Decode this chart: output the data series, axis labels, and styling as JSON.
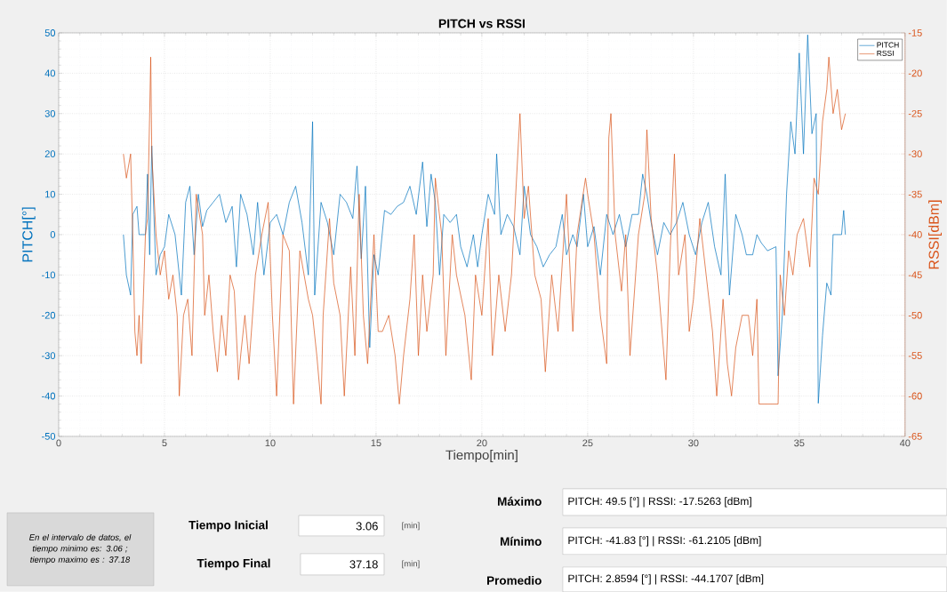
{
  "chart_data": {
    "type": "line",
    "title": "PITCH vs RSSI",
    "xlabel": "Tiempo[min]",
    "ylabel": "PITCH[°]",
    "y2label": "RSSI[dBm]",
    "xlim": [
      0,
      40
    ],
    "xticks": [
      0,
      5,
      10,
      15,
      20,
      25,
      30,
      35,
      40
    ],
    "ylim": [
      -50,
      50
    ],
    "yticks": [
      -50,
      -40,
      -30,
      -20,
      -10,
      0,
      10,
      20,
      30,
      40,
      50
    ],
    "y2lim": [
      -65,
      -15
    ],
    "y2ticks": [
      -65,
      -60,
      -55,
      -50,
      -45,
      -40,
      -35,
      -30,
      -25,
      -20,
      -15
    ],
    "grid": true,
    "legend": "top right",
    "series": [
      {
        "name": "PITCH",
        "color": "#0072bd",
        "x": [
          3.06,
          3.2,
          3.4,
          3.5,
          3.7,
          3.8,
          4.1,
          4.2,
          4.3,
          4.4,
          4.5,
          4.6,
          4.8,
          5.0,
          5.2,
          5.5,
          5.8,
          6.0,
          6.2,
          6.4,
          6.6,
          6.8,
          7.0,
          7.3,
          7.6,
          7.9,
          8.2,
          8.4,
          8.6,
          8.9,
          9.2,
          9.4,
          9.7,
          10.0,
          10.3,
          10.6,
          10.9,
          11.2,
          11.5,
          11.8,
          12.0,
          12.1,
          12.4,
          12.7,
          13.0,
          13.3,
          13.6,
          13.9,
          14.1,
          14.3,
          14.5,
          14.7,
          14.9,
          15.1,
          15.4,
          15.7,
          16.0,
          16.3,
          16.6,
          16.9,
          17.2,
          17.4,
          17.6,
          17.8,
          18.0,
          18.2,
          18.5,
          18.8,
          19.0,
          19.3,
          19.6,
          19.8,
          20.0,
          20.3,
          20.6,
          20.7,
          20.9,
          21.2,
          21.5,
          21.8,
          22.0,
          22.3,
          22.6,
          22.9,
          23.2,
          23.5,
          23.8,
          24.0,
          24.3,
          24.5,
          24.8,
          25.0,
          25.3,
          25.6,
          25.9,
          26.2,
          26.5,
          26.8,
          27.1,
          27.4,
          27.6,
          27.8,
          28.0,
          28.3,
          28.6,
          28.9,
          29.2,
          29.5,
          29.8,
          30.1,
          30.4,
          30.7,
          31.0,
          31.3,
          31.5,
          31.7,
          32.0,
          32.3,
          32.5,
          32.8,
          33.0,
          33.2,
          33.5,
          33.9,
          34.0,
          34.2,
          34.4,
          34.6,
          34.8,
          35.0,
          35.2,
          35.4,
          35.6,
          35.8,
          35.9,
          36.1,
          36.3,
          36.5,
          36.6,
          37.0,
          37.1,
          37.18
        ],
        "values": [
          0,
          -10,
          -15,
          5,
          7,
          0,
          0,
          15,
          -5,
          22,
          5,
          -10,
          -5,
          -3,
          5,
          0,
          -15,
          8,
          12,
          -5,
          10,
          2,
          6,
          8,
          10,
          3,
          7,
          -8,
          10,
          5,
          -5,
          8,
          -10,
          3,
          5,
          0,
          8,
          12,
          3,
          -10,
          28,
          -15,
          8,
          3,
          -5,
          10,
          8,
          4,
          17,
          -6,
          12,
          -28,
          -5,
          -10,
          6,
          5,
          7,
          8,
          12,
          5,
          18,
          2,
          15,
          8,
          -10,
          5,
          3,
          5,
          -3,
          -8,
          0,
          -8,
          0,
          10,
          5,
          20,
          0,
          5,
          2,
          -5,
          12,
          0,
          -3,
          -8,
          -5,
          -3,
          5,
          -5,
          0,
          -3,
          10,
          -3,
          2,
          -10,
          5,
          0,
          5,
          -3,
          5,
          5,
          15,
          10,
          3,
          -5,
          3,
          0,
          3,
          8,
          0,
          -5,
          3,
          8,
          -3,
          -10,
          15,
          -15,
          5,
          0,
          -5,
          -5,
          0,
          -2,
          -4,
          -3,
          -35,
          -20,
          10,
          28,
          20,
          45,
          20,
          49.5,
          25,
          30,
          -41.8,
          -25,
          -12,
          -15,
          0,
          0,
          6,
          0
        ]
      },
      {
        "name": "RSSI",
        "color": "#d95319",
        "axis": "y2",
        "x": [
          3.06,
          3.2,
          3.4,
          3.5,
          3.6,
          3.7,
          3.8,
          3.9,
          4.1,
          4.2,
          4.3,
          4.35,
          4.4,
          4.6,
          4.8,
          5.0,
          5.2,
          5.4,
          5.6,
          5.7,
          5.9,
          6.1,
          6.3,
          6.5,
          6.8,
          6.9,
          7.1,
          7.3,
          7.5,
          7.7,
          7.9,
          8.1,
          8.3,
          8.5,
          8.6,
          8.8,
          9.0,
          9.3,
          9.6,
          9.9,
          10.1,
          10.3,
          10.6,
          10.9,
          11.1,
          11.4,
          11.8,
          12.0,
          12.2,
          12.4,
          12.5,
          12.8,
          13.0,
          13.3,
          13.5,
          13.8,
          14.0,
          14.2,
          14.4,
          14.6,
          14.9,
          15.1,
          15.3,
          15.6,
          15.9,
          16.1,
          16.3,
          16.6,
          16.8,
          17.0,
          17.2,
          17.4,
          17.7,
          17.8,
          18.1,
          18.3,
          18.6,
          18.8,
          19.2,
          19.5,
          19.7,
          20.0,
          20.3,
          20.5,
          20.8,
          21.1,
          21.4,
          21.7,
          21.8,
          22.0,
          22.2,
          22.5,
          22.8,
          23.0,
          23.3,
          23.6,
          24.0,
          24.3,
          24.5,
          24.9,
          25.0,
          25.3,
          25.6,
          25.9,
          26.0,
          26.1,
          26.3,
          26.6,
          26.8,
          27.0,
          27.4,
          27.7,
          27.8,
          28.0,
          28.3,
          28.7,
          28.9,
          29.1,
          29.3,
          29.6,
          29.8,
          30.0,
          30.3,
          30.6,
          30.9,
          31.1,
          31.4,
          31.6,
          31.8,
          32.0,
          32.3,
          32.6,
          32.8,
          33.0,
          33.1,
          34.0,
          34.1,
          34.3,
          34.5,
          34.7,
          34.9,
          35.2,
          35.5,
          35.7,
          35.9,
          36.1,
          36.3,
          36.4,
          36.6,
          36.8,
          37.0,
          37.18
        ],
        "values": [
          -30,
          -33,
          -30,
          -40,
          -52,
          -55,
          -50,
          -56,
          -40,
          -38,
          -25,
          -18,
          -30,
          -40,
          -45,
          -42,
          -48,
          -45,
          -50,
          -60,
          -50,
          -48,
          -55,
          -35,
          -40,
          -50,
          -45,
          -52,
          -57,
          -50,
          -55,
          -45,
          -47,
          -58,
          -55,
          -50,
          -56,
          -45,
          -40,
          -36,
          -50,
          -60,
          -40,
          -42,
          -61,
          -42,
          -48,
          -50,
          -55,
          -61,
          -50,
          -38,
          -46,
          -50,
          -60,
          -44,
          -55,
          -35,
          -50,
          -56,
          -40,
          -52,
          -52,
          -50,
          -55,
          -61,
          -55,
          -48,
          -40,
          -55,
          -45,
          -52,
          -45,
          -33,
          -40,
          -55,
          -40,
          -45,
          -50,
          -58,
          -45,
          -50,
          -38,
          -55,
          -45,
          -52,
          -45,
          -30,
          -25,
          -38,
          -34,
          -45,
          -48,
          -57,
          -45,
          -52,
          -35,
          -52,
          -40,
          -33,
          -35,
          -40,
          -50,
          -56,
          -28,
          -25,
          -40,
          -47,
          -40,
          -55,
          -40,
          -35,
          -27,
          -38,
          -45,
          -58,
          -42,
          -30,
          -45,
          -40,
          -52,
          -48,
          -38,
          -45,
          -52,
          -60,
          -48,
          -56,
          -60,
          -54,
          -50,
          -50,
          -55,
          -48,
          -61,
          -61,
          -45,
          -50,
          -42,
          -45,
          -40,
          -38,
          -44,
          -33,
          -35,
          -26,
          -22,
          -18,
          -25,
          -22,
          -27,
          -25
        ]
      }
    ],
    "annotations": [
      "En el intervalo de datos, el tiempo minimo es: 3.06 ; tiempo maximo es : 37.18",
      "Tiempo Inicial",
      "3.06",
      "[min]",
      "Tiempo Final",
      "37.18",
      "[min]",
      "Máximo",
      "PITCH: 49.5 [°] | RSSI: -17.5263 [dBm]",
      "Mínimo",
      "PITCH: -41.83 [°] | RSSI: -61.2105 [dBm]",
      "Promedio",
      "PITCH: 2.8594 [°] | RSSI: -44.1707 [dBm]"
    ]
  }
}
